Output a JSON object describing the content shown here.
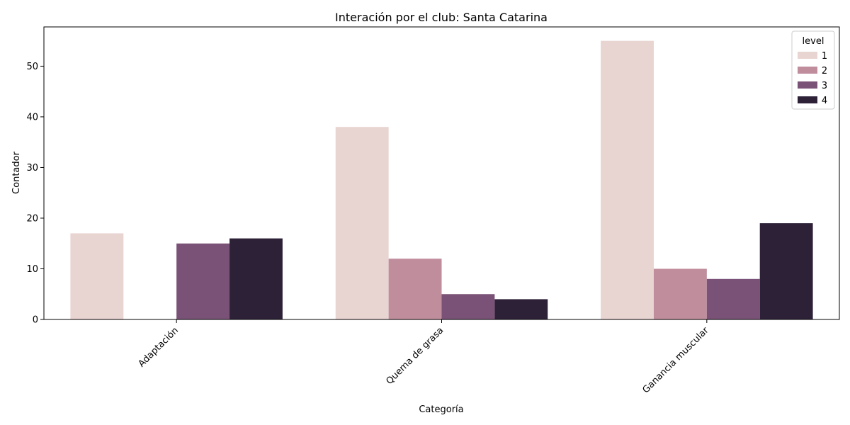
{
  "chart_data": {
    "type": "bar",
    "title": "Interación por el club: Santa Catarina",
    "xlabel": "Categoría",
    "ylabel": "Contador",
    "categories": [
      "Adaptación",
      "Quema de grasa",
      "Ganancia muscular"
    ],
    "ylim": [
      0,
      57.75
    ],
    "yticks": [
      0,
      10,
      20,
      30,
      40,
      50
    ],
    "x_tick_rotation": 45,
    "grid": false,
    "legend": {
      "title": "level",
      "position": "top-right"
    },
    "series": [
      {
        "name": "1",
        "color": "#e8d4d1",
        "values": [
          17,
          38,
          55
        ]
      },
      {
        "name": "2",
        "color": "#c08d9d",
        "values": [
          0,
          12,
          10
        ]
      },
      {
        "name": "3",
        "color": "#7a5277",
        "values": [
          15,
          5,
          8
        ]
      },
      {
        "name": "4",
        "color": "#2d2138",
        "values": [
          16,
          4,
          19
        ]
      }
    ]
  }
}
